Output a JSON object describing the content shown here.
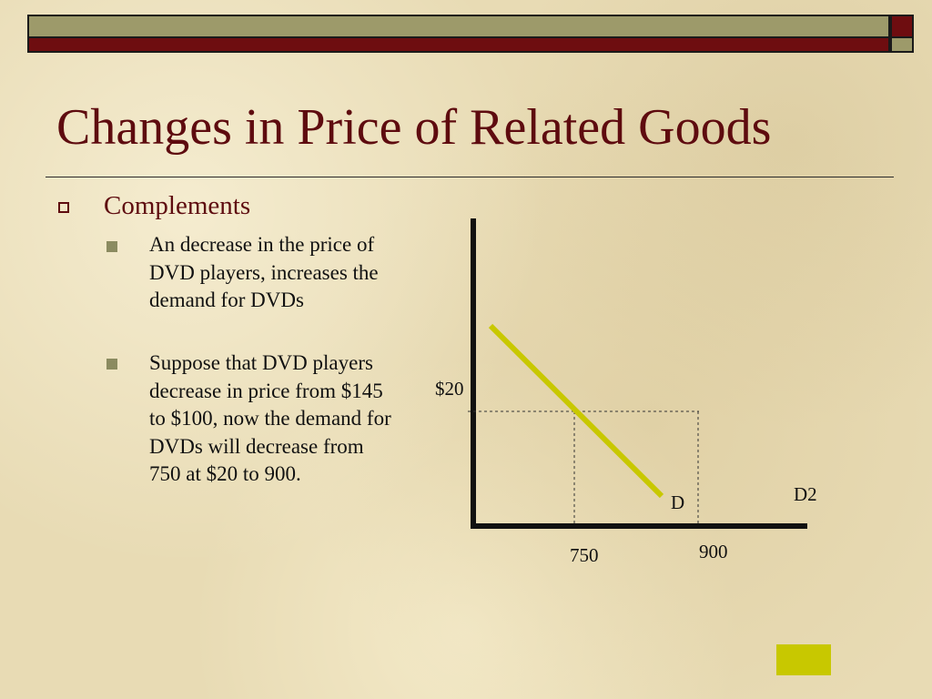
{
  "slide": {
    "title": "Changes in Price of Related Goods",
    "accent_colors": {
      "title": "#5e0b0f",
      "bar_olive": "#9d9a6a",
      "bar_red": "#6e0d10",
      "demand_line": "#c8c800"
    }
  },
  "content": {
    "heading": "Complements",
    "bullets": [
      {
        "text": "An decrease in the price of DVD players, increases the demand for DVDs"
      },
      {
        "text": "Suppose that DVD players decrease in price from $145 to $100, now the demand for DVDs will decrease from 750 at $20 to 900."
      }
    ]
  },
  "diagram": {
    "price_label": "$20",
    "quantity_labels": [
      "750",
      "900"
    ],
    "curve_labels": [
      "D",
      "D2"
    ]
  }
}
